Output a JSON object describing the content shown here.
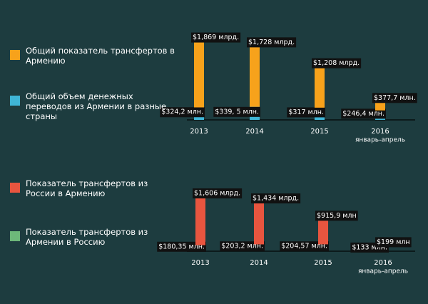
{
  "chart_data": [
    {
      "type": "bar",
      "stacked": true,
      "categories": [
        "2013",
        "2014",
        "2015",
        "2016"
      ],
      "category_notes": [
        null,
        null,
        null,
        "январь-апрель"
      ],
      "series": [
        {
          "name": "Общий показатель трансфертов в Армению",
          "color": "#f7a21b",
          "values": [
            1869,
            1728,
            1208,
            377.7
          ],
          "value_labels": [
            "$1,869 млрд.",
            "$1,728 млрд.",
            "$1,208 млрд.",
            "$377,7 млн."
          ]
        },
        {
          "name": "Общий объем денежных переводов из Армении в разные страны",
          "color": "#3fb5d6",
          "values": [
            324.2,
            339.5,
            317,
            246.4
          ],
          "value_labels": [
            "$324,2 млн.",
            "$339, 5 млн.",
            "$317 млн.",
            "$246,4 млн."
          ]
        }
      ]
    },
    {
      "type": "bar",
      "stacked": true,
      "categories": [
        "2013",
        "2014",
        "2015",
        "2016"
      ],
      "category_notes": [
        null,
        null,
        null,
        "январь-апрель"
      ],
      "series": [
        {
          "name": "Показатель трансфертов из России в Армению",
          "color": "#e8553f",
          "values": [
            1606,
            1434,
            915.9,
            199
          ],
          "value_labels": [
            "$1,606 млрд.",
            "$1,434 млрд.",
            "$915,9 млн",
            "$199 млн"
          ]
        },
        {
          "name": "Показатель трансфертов из Армении в Россию",
          "color": "#6db87a",
          "values": [
            180.35,
            203.2,
            204.57,
            133
          ],
          "value_labels": [
            "$180,35 млн.",
            "$203,2 млн.",
            "$204,57 млн.",
            "$133 млн."
          ]
        }
      ]
    }
  ]
}
